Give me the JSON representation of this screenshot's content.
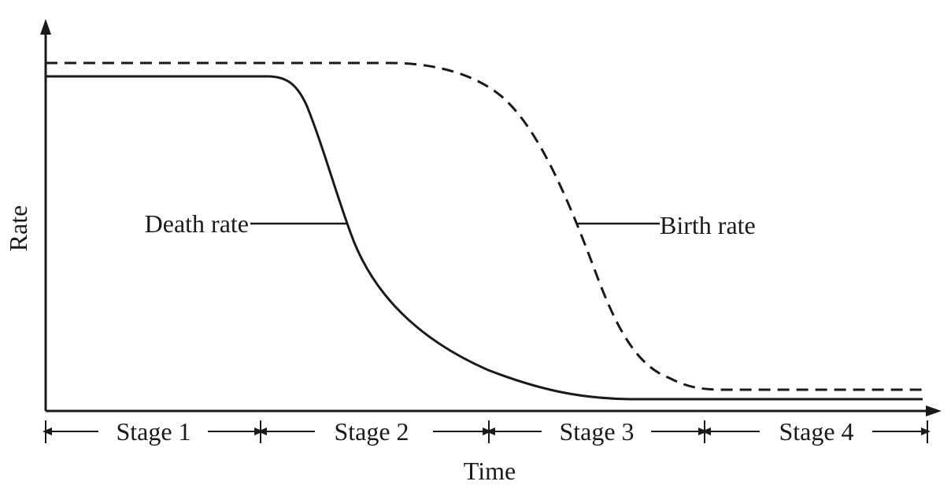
{
  "axes": {
    "y_label": "Rate",
    "x_label": "Time"
  },
  "curves": {
    "death": {
      "label": "Death rate",
      "line_style": "solid"
    },
    "birth": {
      "label": "Birth rate",
      "line_style": "dashed"
    }
  },
  "stages": [
    "Stage 1",
    "Stage 2",
    "Stage 3",
    "Stage 4"
  ],
  "colors": {
    "ink": "#1a1a1a",
    "background": "#ffffff"
  }
}
